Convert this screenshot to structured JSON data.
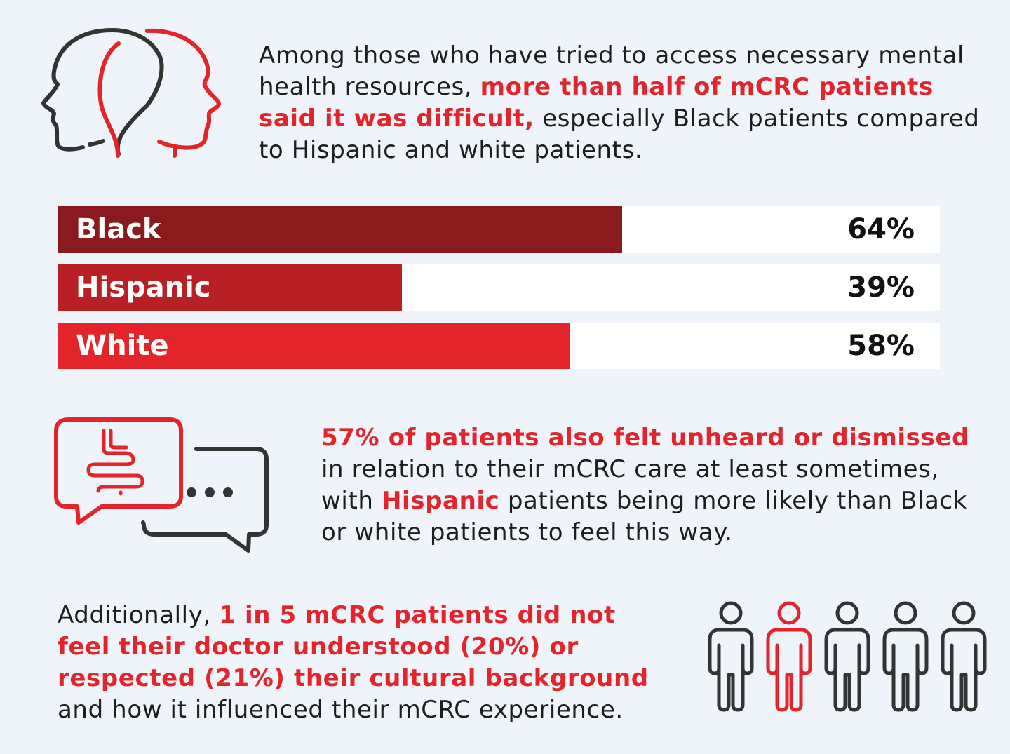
{
  "colors": {
    "accent": "#e3242b",
    "dark": "#333333",
    "background": "#eef4f9"
  },
  "intro": {
    "pre": "Among those who have tried to access necessary mental health resources, ",
    "highlight": "more than half of mCRC patients said it was difficult,",
    "post": " especially Black patients compared to Hispanic and white patients."
  },
  "chart_data": {
    "type": "bar",
    "orientation": "horizontal",
    "categories": [
      "Black",
      "Hispanic",
      "White"
    ],
    "values": [
      64,
      39,
      58
    ],
    "value_labels": [
      "64%",
      "39%",
      "58%"
    ],
    "colors": [
      "#8b1a1e",
      "#b82025",
      "#e3242b"
    ],
    "xlim": [
      0,
      100
    ]
  },
  "second": {
    "highlight": "57% of patients also felt unheard or dismissed",
    "pre": " in relation to their mCRC care at least sometimes, with ",
    "highlight2": "Hispanic",
    "post": " patients being more likely than Black or white patients to feel this way."
  },
  "third": {
    "pre": "Additionally, ",
    "highlight": "1 in 5 mCRC patients did not feel their doctor understood (20%) or respected (21%) their cultural background",
    "post": " and how it influenced their mCRC experience."
  },
  "icons": {
    "heads": "two-heads-icon",
    "chat": "speech-bubbles-intestine-icon",
    "people": "people-icon"
  },
  "people": {
    "total": 5,
    "highlighted_index": 1
  }
}
